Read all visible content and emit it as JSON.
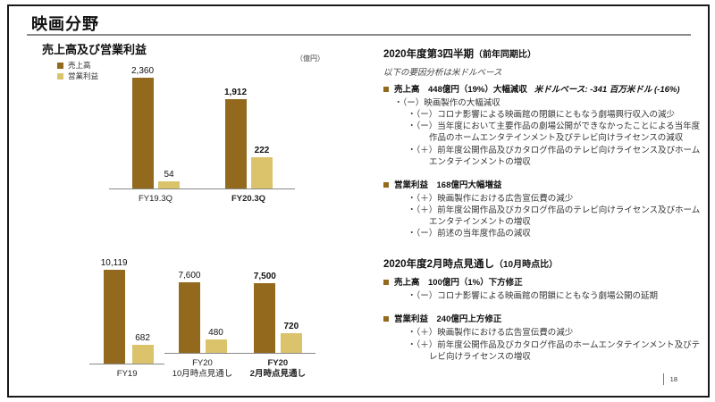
{
  "slide": {
    "title": "映画分野",
    "page_number": "18"
  },
  "colors": {
    "bar_sales": "#93691e",
    "bar_profit": "#dbc36c",
    "bullet": "#93691e"
  },
  "left": {
    "section_title": "売上高及び営業利益",
    "unit_label": "（億円）",
    "legend": [
      {
        "label": "売上高",
        "color": "#93691e"
      },
      {
        "label": "営業利益",
        "color": "#dbc36c"
      }
    ]
  },
  "chart_data": [
    {
      "type": "bar",
      "title": "売上高及び営業利益（第3四半期）",
      "categories": [
        "FY19.3Q",
        "FY20.3Q"
      ],
      "emphasis": [
        false,
        true
      ],
      "unit": "億円",
      "grid": false,
      "legend_position": "top-left",
      "series": [
        {
          "name": "売上高",
          "color": "#93691e",
          "values": [
            2360,
            1912
          ],
          "axis_max": 2360
        },
        {
          "name": "営業利益",
          "color": "#dbc36c",
          "values": [
            54,
            222
          ],
          "axis_max": 790
        }
      ]
    },
    {
      "type": "bar",
      "title": "売上高及び営業利益（通期見通し）",
      "categories": [
        "FY19",
        "FY20\n10月時点見通し",
        "FY20\n2月時点見通し"
      ],
      "emphasis": [
        false,
        false,
        true
      ],
      "unit": "億円",
      "grid": false,
      "series": [
        {
          "name": "売上高",
          "color": "#93691e",
          "values": [
            10119,
            7600,
            7500
          ],
          "axis_max": 10120
        },
        {
          "name": "営業利益",
          "color": "#dbc36c",
          "values": [
            682,
            480,
            720
          ],
          "axis_max": 3410
        }
      ]
    }
  ],
  "right": {
    "q3": {
      "heading": "2020年度第3四半期",
      "heading_paren": "（前年同期比）",
      "note": "以下の要因分析は米ドルベース",
      "sales": {
        "headline": "売上高　448億円（19%）大幅減収",
        "usd_note": "米ドルベース: -341 百万米ドル (-16%)",
        "items": [
          {
            "level": 1,
            "text": "・（ー）映画製作の大幅減収"
          },
          {
            "level": 2,
            "text": "・（ー）コロナ影響による映画館の閉鎖にともなう劇場興行収入の減少"
          },
          {
            "level": 2,
            "text": "・（ー）当年度において主要作品の劇場公開ができなかったことによる当年度作品のホームエンタテインメント及びテレビ向けライセンスの減収"
          },
          {
            "level": 2,
            "text": "・（＋）前年度公開作品及びカタログ作品のテレビ向けライセンス及びホームエンタテインメントの増収"
          }
        ]
      },
      "profit": {
        "headline": "営業利益　168億円大幅増益",
        "items": [
          {
            "level": 2,
            "text": "・（＋）映画製作における広告宣伝費の減少"
          },
          {
            "level": 2,
            "text": "・（＋）前年度公開作品及びカタログ作品のテレビ向けライセンス及びホームエンタテインメントの増収"
          },
          {
            "level": 2,
            "text": "・（ー）前述の当年度作品の減収"
          }
        ]
      }
    },
    "outlook": {
      "heading": "2020年度2月時点見通し",
      "heading_paren": "（10月時点比）",
      "sales": {
        "headline": "売上高　100億円（1%）下方修正",
        "items": [
          {
            "level": 2,
            "text": "・（ー）コロナ影響による映画館の閉鎖にともなう劇場公開の延期"
          }
        ]
      },
      "profit": {
        "headline": "営業利益　240億円上方修正",
        "items": [
          {
            "level": 2,
            "text": "・（＋）映画製作における広告宣伝費の減少"
          },
          {
            "level": 2,
            "text": "・（＋）前年度公開作品及びカタログ作品のホームエンタテインメント及びテレビ向けライセンスの増収"
          }
        ]
      }
    }
  }
}
